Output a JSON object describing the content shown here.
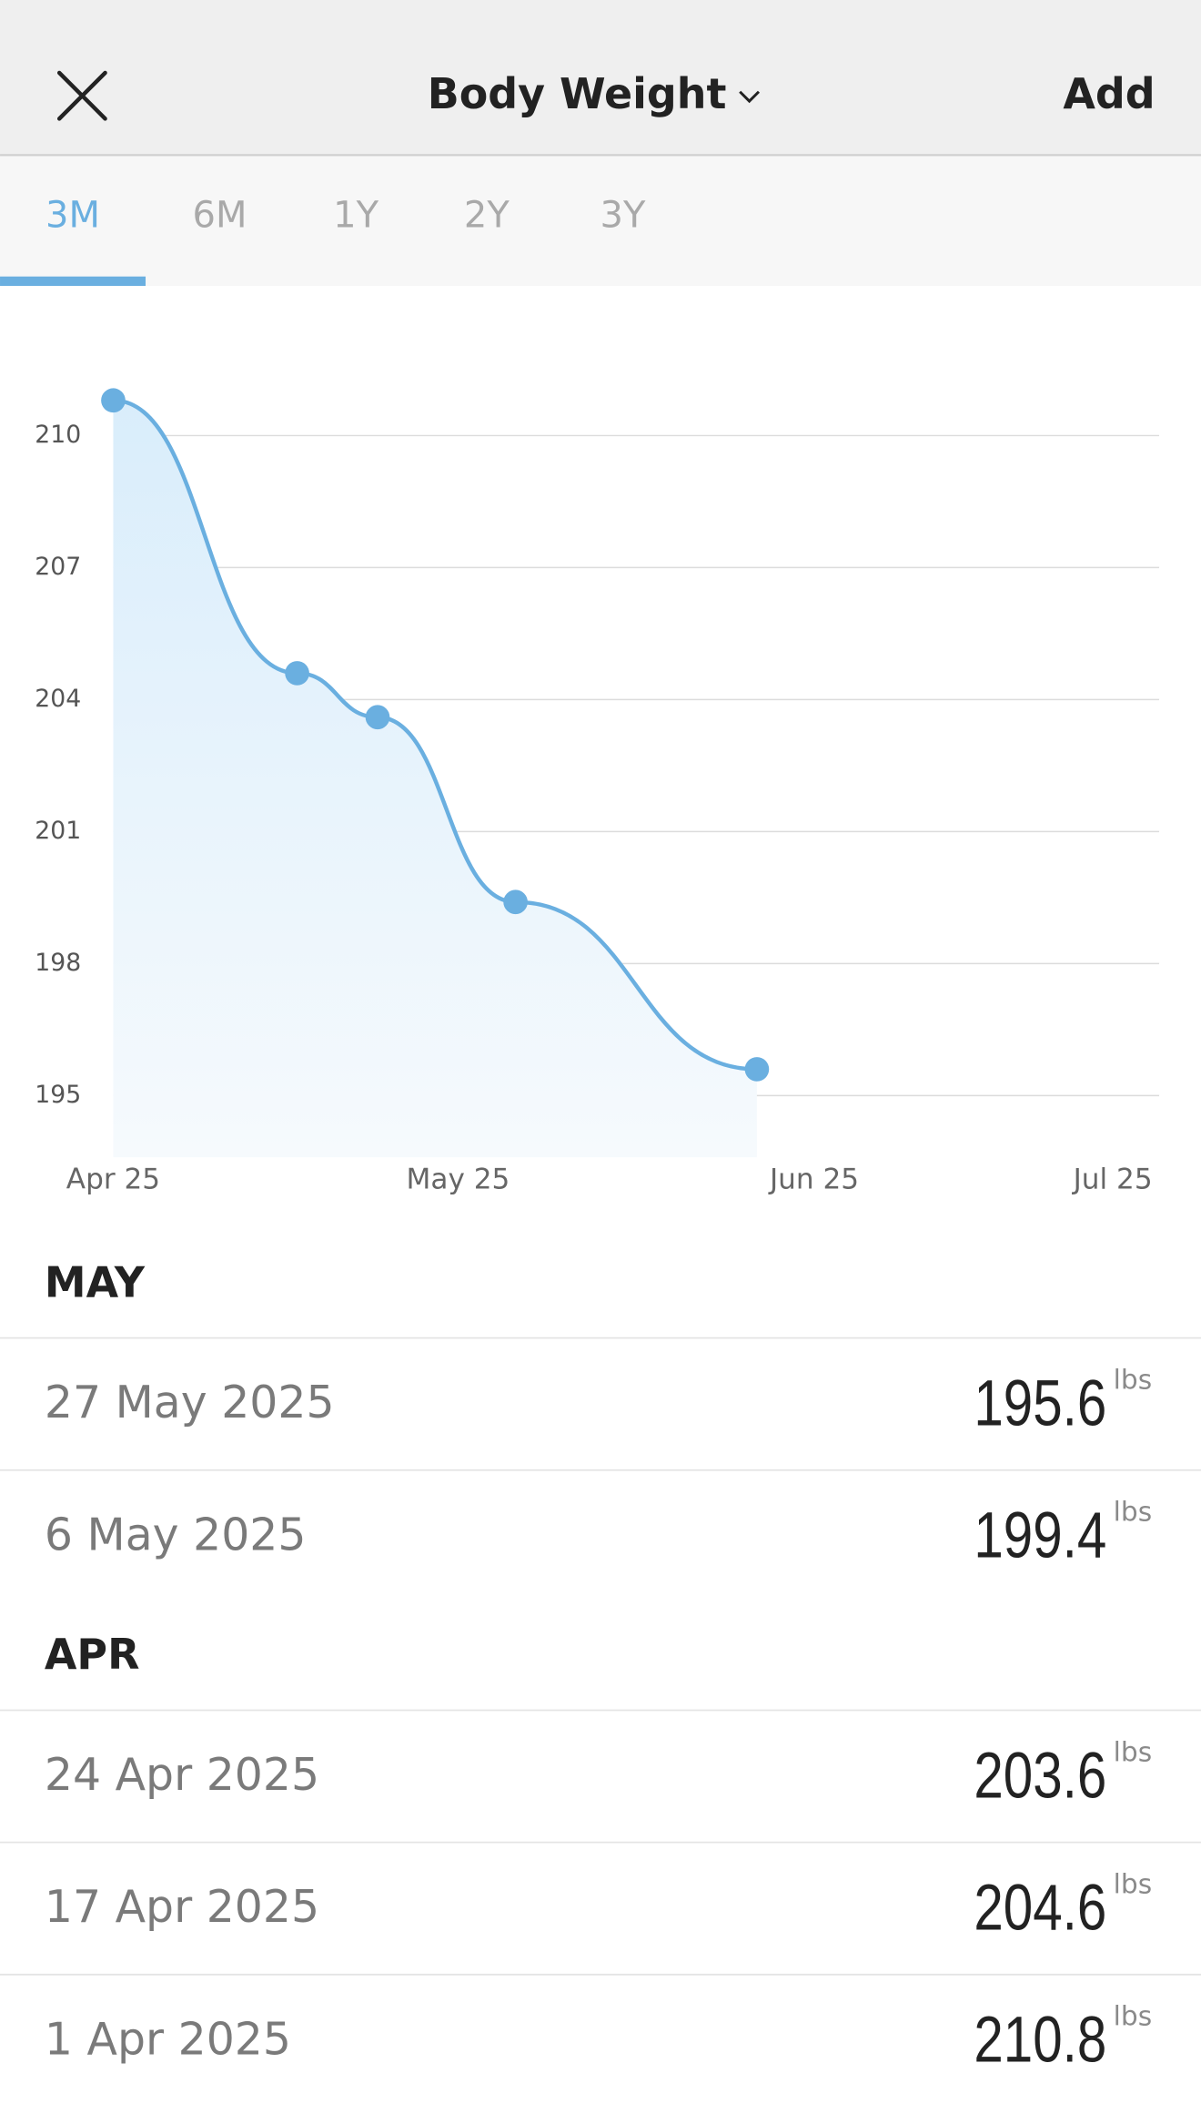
{
  "header": {
    "title": "Body Weight",
    "action": "Add"
  },
  "tabs": [
    "3M",
    "6M",
    "1Y",
    "2Y",
    "3Y"
  ],
  "active_tab": "3M",
  "chart_data": {
    "type": "line",
    "x": [
      "1 Apr 2025",
      "17 Apr 2025",
      "24 Apr 2025",
      "6 May 2025",
      "27 May 2025"
    ],
    "values": [
      210.8,
      204.6,
      203.6,
      199.4,
      195.6
    ],
    "unit": "lbs",
    "color": "#6aafe0",
    "xlim": [
      "1 Apr 2025",
      "1 Jul 2025"
    ],
    "xticks": [
      {
        "value": "1 Apr 2025",
        "label": "Apr 25"
      },
      {
        "value": "1 May 2025",
        "label": "May 25"
      },
      {
        "value": "1 Jun 2025",
        "label": "Jun 25"
      },
      {
        "value": "1 Jul 2025",
        "label": "Jul 25"
      }
    ],
    "ylim": [
      193.6,
      212
    ],
    "yticks": [
      195,
      198,
      201,
      204,
      207,
      210
    ],
    "grid": true
  },
  "sections": [
    {
      "title": "MAY"
    },
    {
      "title": "APR"
    }
  ]
}
